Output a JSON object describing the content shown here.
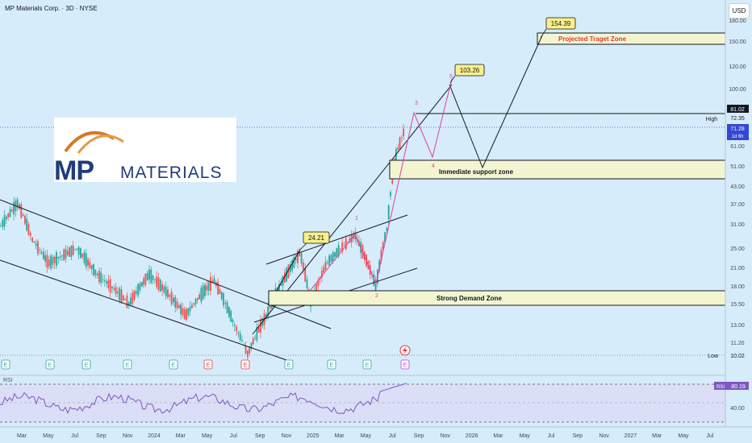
{
  "header": {
    "title": "MP Materials Corp. · 3D · NYSE",
    "currency": "USD"
  },
  "logo": {
    "mark": "MP",
    "word": "MATERIALS"
  },
  "chart_data": {
    "type": "line",
    "title": "MP Materials Corp. · 3D · NYSE",
    "y_ticks": [
      "180.00",
      "150.00",
      "120.00",
      "100.00",
      "72.35",
      "61.00",
      "51.00",
      "43.00",
      "37.00",
      "31.00",
      "25.00",
      "21.00",
      "18.00",
      "15.50",
      "13.00",
      "11.20"
    ],
    "x_ticks": [
      "Mar",
      "May",
      "Jul",
      "Sep",
      "Nov",
      "2024",
      "Mar",
      "May",
      "Jul",
      "Sep",
      "Nov",
      "2025",
      "Mar",
      "May",
      "Jul",
      "Sep",
      "Nov",
      "2026",
      "Mar",
      "May",
      "Jul",
      "Sep",
      "Nov",
      "2027",
      "Mar",
      "May",
      "Jul"
    ],
    "price_tags": [
      {
        "label": "High",
        "value": "81.02"
      },
      {
        "label": "",
        "value": "72.35"
      },
      {
        "label": "",
        "value": "71.28",
        "sub": "1d 6h"
      },
      {
        "label": "Low",
        "value": "10.02"
      }
    ],
    "callouts": [
      "154.39",
      "103.26",
      "24.21"
    ],
    "zones": [
      "Projected Traget Zone",
      "Immediate support zone",
      "Strong Demand Zone"
    ],
    "wave_labels": [
      "1",
      "2",
      "3",
      "4",
      "5"
    ],
    "events": [
      "E",
      "E",
      "E",
      "E",
      "E",
      "E",
      "E",
      "E",
      "E",
      "E",
      "E"
    ],
    "rsi": {
      "label": "RSI",
      "value": "80.19",
      "level": "40.00"
    },
    "colors": {
      "up": "#26a69a",
      "down": "#ef5350",
      "wave": "#e040a0",
      "zone_fill": "#f2f5d0",
      "rsi_line": "#7e57c2",
      "bg": "#d6ecfb"
    }
  }
}
